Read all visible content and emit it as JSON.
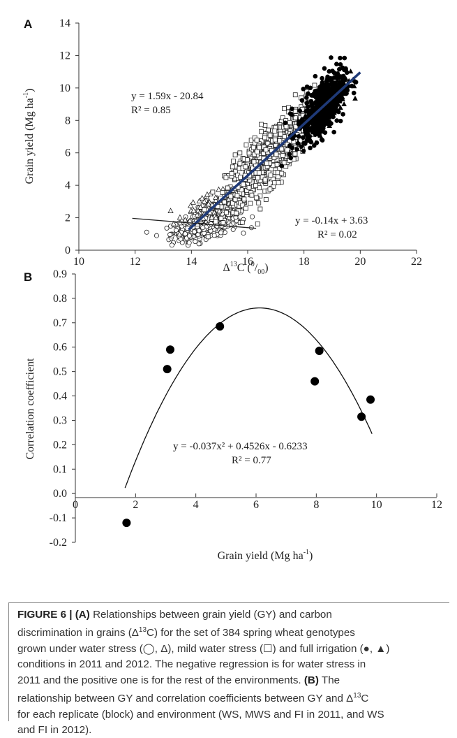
{
  "chart_data": [
    {
      "panel": "A",
      "type": "scatter",
      "xlabel_main": "Δ",
      "xlabel_sup": "13",
      "xlabel_after": "C (",
      "xlabel_unit_sup": "0",
      "xlabel_slash": "/",
      "xlabel_unit_sub": "00",
      "xlabel_close": ")",
      "ylabel_main": "Grain yield (Mg ha",
      "ylabel_sup": "-1",
      "ylabel_close": ")",
      "xlim": [
        10,
        22
      ],
      "ylim": [
        0,
        14
      ],
      "xticks": [
        "10",
        "12",
        "14",
        "16",
        "18",
        "20",
        "22"
      ],
      "yticks": [
        "0",
        "2",
        "4",
        "6",
        "8",
        "10",
        "12",
        "14"
      ],
      "grid": false,
      "series": [
        {
          "name": "water stress 2011",
          "marker": "open-circle",
          "x_center": 14.5,
          "x_spread": 1.0,
          "y_center": 1.5,
          "y_spread": 0.7,
          "count": 380
        },
        {
          "name": "water stress 2012",
          "marker": "open-triangle",
          "x_center": 14.8,
          "x_spread": 0.9,
          "y_center": 2.6,
          "y_spread": 0.8,
          "count": 120
        },
        {
          "name": "mild water stress",
          "marker": "open-square",
          "x_center": 16.8,
          "x_spread": 1.3,
          "y_center": 4.8,
          "y_spread": 1.6,
          "count": 760
        },
        {
          "name": "full irrigation 2011",
          "marker": "filled-circle",
          "x_center": 18.6,
          "x_spread": 0.7,
          "y_center": 9.2,
          "y_spread": 1.6,
          "count": 380
        },
        {
          "name": "full irrigation 2012",
          "marker": "filled-triangle",
          "x_center": 18.8,
          "x_spread": 0.6,
          "y_center": 10.4,
          "y_spread": 1.1,
          "count": 340
        }
      ],
      "regressions": [
        {
          "label_eq": "y = 1.59x - 20.84",
          "label_r2": "R² = 0.85",
          "slope": 1.59,
          "intercept": -20.84,
          "x_range": [
            13.9,
            20.0
          ],
          "color": "#1f3a78"
        },
        {
          "label_eq": "y = -0.14x + 3.63",
          "label_r2": "R² = 0.02",
          "slope": -0.14,
          "intercept": 3.63,
          "x_range": [
            11.9,
            16.3
          ],
          "color": "#222222"
        }
      ]
    },
    {
      "panel": "B",
      "type": "scatter",
      "xlabel_main": "Grain yield (Mg ha",
      "xlabel_sup": "-1",
      "xlabel_close": ")",
      "ylabel": "Correlation coefficient",
      "xlim": [
        0,
        12
      ],
      "ylim": [
        -0.2,
        0.9
      ],
      "xticks": [
        "0",
        "2",
        "4",
        "6",
        "8",
        "10",
        "12"
      ],
      "yticks": [
        "0.9",
        "0.8",
        "0.7",
        "0.6",
        "0.5",
        "0.4",
        "0.3",
        "0.2",
        "0.1",
        "0.0",
        "-0.1",
        "-0.2"
      ],
      "grid": false,
      "points": [
        {
          "x": 1.7,
          "y": -0.12
        },
        {
          "x": 3.05,
          "y": 0.51
        },
        {
          "x": 3.15,
          "y": 0.59
        },
        {
          "x": 4.8,
          "y": 0.685
        },
        {
          "x": 7.95,
          "y": 0.46
        },
        {
          "x": 8.1,
          "y": 0.585
        },
        {
          "x": 9.5,
          "y": 0.315
        },
        {
          "x": 9.8,
          "y": 0.385
        }
      ],
      "fit": {
        "label_eq": "y = -0.037x² + 0.4526x - 0.6233",
        "label_r2": "R² = 0.77",
        "a": -0.037,
        "b": 0.4526,
        "c": -0.6233,
        "x_range": [
          1.65,
          9.85
        ]
      }
    }
  ],
  "caption": {
    "figure_label": "FIGURE 6 |",
    "label_a": "(A)",
    "text_1": " Relationships between grain yield (GY) and carbon",
    "text_2": "discrimination in grains (Δ",
    "sup_13": "13",
    "text_3": "C) for the set of 384 spring wheat genotypes",
    "text_4": "grown under water stress (◯, Δ), mild water stress (☐) and full irrigation (●, ▲)",
    "text_5": "conditions in 2011 and 2012. The negative regression is for water stress in",
    "text_6": "2011 and the positive one is for the rest of the environments. ",
    "label_b": "(B)",
    "text_7": " The",
    "text_8": "relationship between GY and correlation coefficients between GY and Δ",
    "text_9": "C",
    "text_10": "for each replicate (block) and environment (WS, MWS and FI in 2011, and WS",
    "text_11": "and FI in 2012)."
  }
}
